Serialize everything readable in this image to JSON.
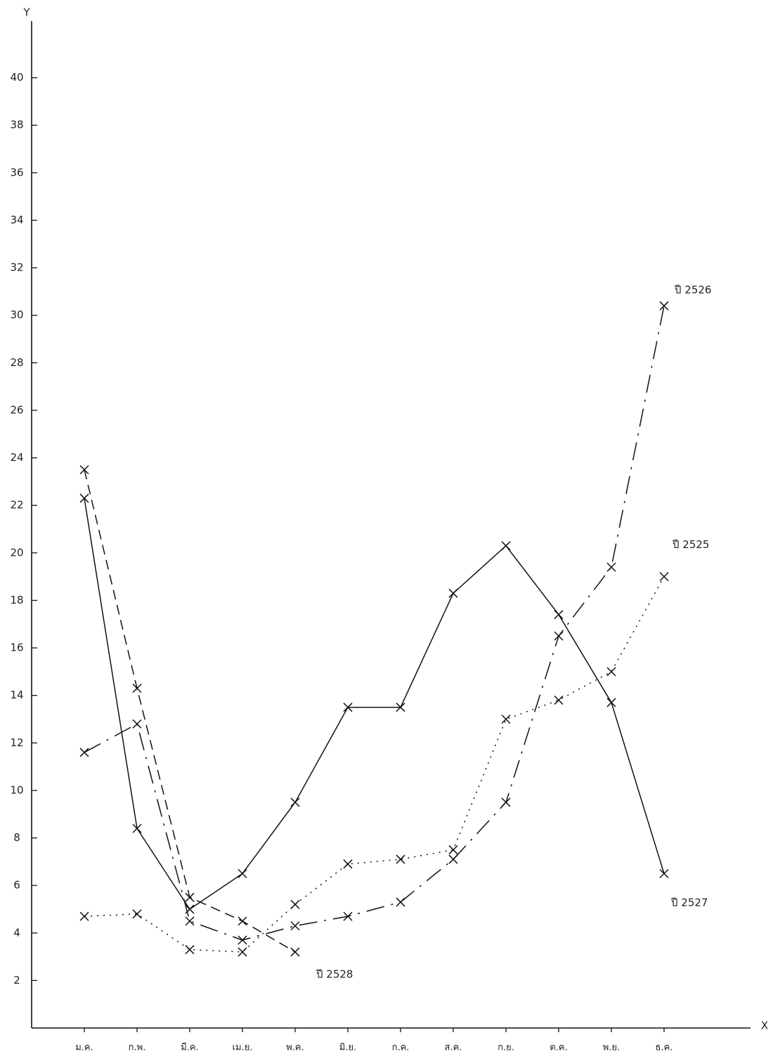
{
  "chart_data": {
    "type": "line",
    "y_label": "Y",
    "x_label": "X",
    "categories": [
      "ม.ค.",
      "ก.พ.",
      "มี.ค.",
      "เม.ย.",
      "พ.ค.",
      "มิ.ย.",
      "ก.ค.",
      "ส.ค.",
      "ก.ย.",
      "ต.ค.",
      "พ.ย.",
      "ธ.ค."
    ],
    "series": [
      {
        "name": "ปี 2526",
        "color": "#111111",
        "dash": "26 10 3 10",
        "values": [
          11.6,
          12.8,
          4.5,
          3.7,
          4.3,
          4.7,
          5.3,
          7.1,
          9.5,
          16.5,
          19.4,
          30.4
        ]
      },
      {
        "name": "ปี 2525",
        "color": "#111111",
        "dash": "2 7",
        "values": [
          4.7,
          4.8,
          3.3,
          3.2,
          5.2,
          6.9,
          7.1,
          7.5,
          13.0,
          13.8,
          15.0,
          19.0
        ]
      },
      {
        "name": "ปี 2527",
        "color": "#111111",
        "dash": "",
        "values": [
          22.3,
          8.4,
          5.0,
          6.5,
          9.5,
          13.5,
          13.5,
          18.3,
          20.3,
          17.4,
          13.7,
          6.5
        ]
      },
      {
        "name": "ปี 2528",
        "color": "#111111",
        "dash": "14 8",
        "values": [
          23.5,
          14.3,
          5.5,
          4.5,
          3.2,
          null,
          null,
          null,
          null,
          null,
          null,
          null
        ]
      }
    ],
    "ylim": [
      0,
      42
    ],
    "yticks": [
      2,
      4,
      6,
      8,
      10,
      12,
      14,
      16,
      18,
      20,
      22,
      24,
      26,
      28,
      30,
      32,
      34,
      36,
      38,
      40
    ],
    "grid": false
  }
}
